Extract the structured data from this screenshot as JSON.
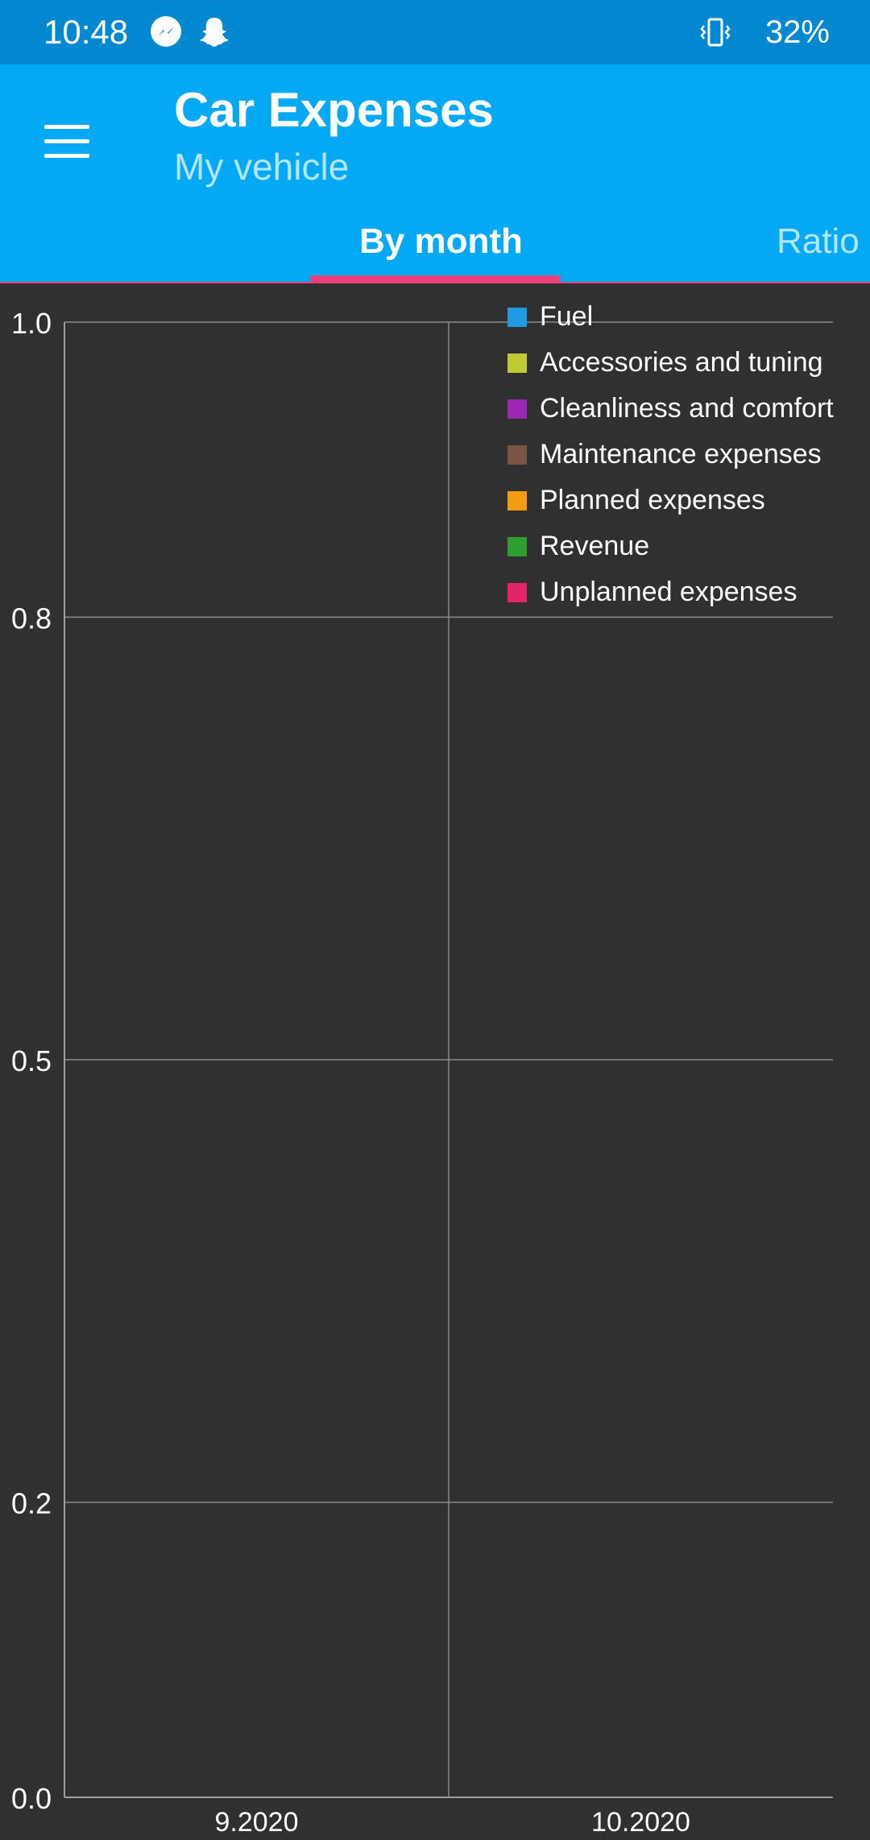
{
  "status_bar": {
    "time": "10:48",
    "battery": "32%",
    "icons": [
      "messenger-icon",
      "snapchat-icon",
      "vibrate-icon"
    ]
  },
  "app_bar": {
    "title": "Car Expenses",
    "subtitle": "My vehicle",
    "tabs": [
      {
        "label": "By month",
        "active": true
      },
      {
        "label": "Ratio",
        "active": false
      }
    ],
    "colors": {
      "status": "#0288d1",
      "toolbar": "#03a9f4",
      "indicator": "#ec407a",
      "background": "#303030"
    }
  },
  "chart_data": {
    "type": "bar",
    "categories": [
      "9.2020",
      "10.2020"
    ],
    "y_ticks": [
      "1.0",
      "0.8",
      "0.5",
      "0.2",
      "0.0"
    ],
    "ylim": [
      0,
      1
    ],
    "grid": true,
    "legend_position": "top-right",
    "series": [
      {
        "name": "Fuel",
        "color": "#1e9be3",
        "values": [
          0,
          0
        ]
      },
      {
        "name": "Accessories and tuning",
        "color": "#c0ca33",
        "values": [
          0,
          0
        ]
      },
      {
        "name": "Cleanliness and comfort",
        "color": "#9c27b0",
        "values": [
          0,
          0
        ]
      },
      {
        "name": "Maintenance expenses",
        "color": "#795548",
        "values": [
          0,
          0
        ]
      },
      {
        "name": "Planned expenses",
        "color": "#f39c12",
        "values": [
          0,
          0
        ]
      },
      {
        "name": "Revenue",
        "color": "#2e9e30",
        "values": [
          0,
          0
        ]
      },
      {
        "name": "Unplanned expenses",
        "color": "#e2256a",
        "values": [
          0,
          0
        ]
      }
    ]
  }
}
